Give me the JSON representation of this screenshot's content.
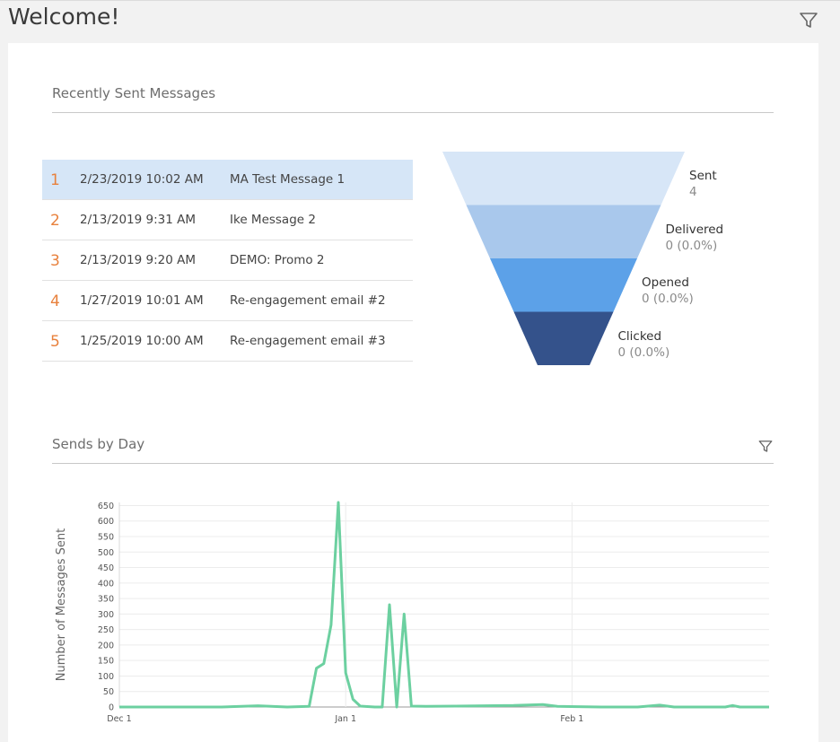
{
  "page": {
    "title": "Welcome!"
  },
  "recent": {
    "title": "Recently Sent Messages",
    "messages": [
      {
        "rank": "1",
        "date": "2/23/2019 10:02 AM",
        "name": "MA Test Message 1",
        "selected": true
      },
      {
        "rank": "2",
        "date": "2/13/2019 9:31 AM",
        "name": "Ike Message 2",
        "selected": false
      },
      {
        "rank": "3",
        "date": "2/13/2019 9:20 AM",
        "name": "DEMO: Promo 2",
        "selected": false
      },
      {
        "rank": "4",
        "date": "1/27/2019 10:01 AM",
        "name": "Re-engagement email #2",
        "selected": false
      },
      {
        "rank": "5",
        "date": "1/25/2019 10:00 AM",
        "name": "Re-engagement email #3",
        "selected": false
      }
    ]
  },
  "funnel": {
    "stages": [
      {
        "label": "Sent",
        "value": "4",
        "color": "#d7e6f7"
      },
      {
        "label": "Delivered",
        "value": "0 (0.0%)",
        "color": "#a9c8ec"
      },
      {
        "label": "Opened",
        "value": "0 (0.0%)",
        "color": "#5ca1e8"
      },
      {
        "label": "Clicked",
        "value": "0 (0.0%)",
        "color": "#34528b"
      }
    ]
  },
  "sends": {
    "title": "Sends by Day"
  },
  "icons": {
    "page_filter": "filter-icon",
    "chart_filter": "filter-icon"
  },
  "colors": {
    "accent_rank": "#e8813d",
    "line": "#6cd0a0",
    "selected_row": "#d6e6f7"
  },
  "chart_data": {
    "type": "line",
    "ylabel": "Number of Messages Sent",
    "xlabel": "",
    "ylim": [
      0,
      660
    ],
    "yticks": [
      0,
      50,
      100,
      150,
      200,
      250,
      300,
      350,
      400,
      450,
      500,
      550,
      600,
      650
    ],
    "xlim": [
      "2018-12-01",
      "2019-02-28"
    ],
    "xticks": [
      {
        "date": "2018-12-01",
        "label": "Dec 1"
      },
      {
        "date": "2019-01-01",
        "label": "Jan 1"
      },
      {
        "date": "2019-02-01",
        "label": "Feb 1"
      }
    ],
    "grid": true,
    "series": [
      {
        "points": [
          [
            "2018-12-01",
            0
          ],
          [
            "2018-12-15",
            0
          ],
          [
            "2018-12-20",
            4
          ],
          [
            "2018-12-24",
            0
          ],
          [
            "2018-12-27",
            2
          ],
          [
            "2018-12-28",
            125
          ],
          [
            "2018-12-29",
            140
          ],
          [
            "2018-12-30",
            265
          ],
          [
            "2018-12-31",
            660
          ],
          [
            "2019-01-01",
            110
          ],
          [
            "2019-01-02",
            25
          ],
          [
            "2019-01-03",
            3
          ],
          [
            "2019-01-05",
            0
          ],
          [
            "2019-01-06",
            0
          ],
          [
            "2019-01-07",
            330
          ],
          [
            "2019-01-08",
            0
          ],
          [
            "2019-01-09",
            300
          ],
          [
            "2019-01-10",
            3
          ],
          [
            "2019-01-12",
            2
          ],
          [
            "2019-01-16",
            3
          ],
          [
            "2019-01-20",
            4
          ],
          [
            "2019-01-24",
            5
          ],
          [
            "2019-01-28",
            8
          ],
          [
            "2019-01-30",
            2
          ],
          [
            "2019-02-05",
            0
          ],
          [
            "2019-02-10",
            0
          ],
          [
            "2019-02-13",
            6
          ],
          [
            "2019-02-15",
            0
          ],
          [
            "2019-02-22",
            0
          ],
          [
            "2019-02-23",
            5
          ],
          [
            "2019-02-24",
            0
          ],
          [
            "2019-02-28",
            0
          ]
        ]
      }
    ]
  }
}
